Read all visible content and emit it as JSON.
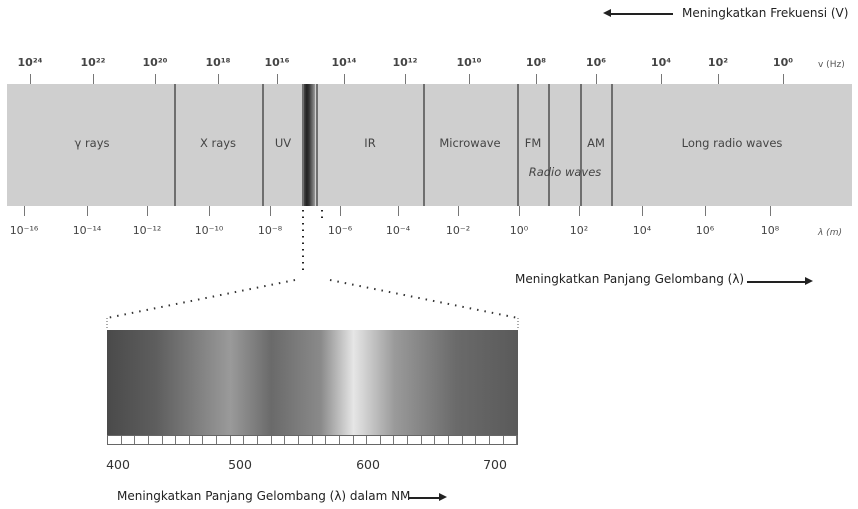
{
  "freq_caption": "Meningkatkan Frekuensi (V)",
  "freq_unit": "v (Hz)",
  "freq_ticks": [
    "10²⁴",
    "10²²",
    "10²⁰",
    "10¹⁸",
    "10¹⁶",
    "10¹⁴",
    "10¹²",
    "10¹⁰",
    "10⁸",
    "10⁶",
    "10⁴",
    "10²",
    "10⁰"
  ],
  "wl_unit": "λ (m)",
  "wl_ticks": [
    "10⁻¹⁶",
    "10⁻¹⁴",
    "10⁻¹²",
    "10⁻¹⁰",
    "10⁻⁸",
    "10⁻⁶",
    "10⁻⁴",
    "10⁻²",
    "10⁰",
    "10²",
    "10⁴",
    "10⁶",
    "10⁸"
  ],
  "regions": {
    "gamma": "γ rays",
    "xray": "X rays",
    "uv": "UV",
    "ir": "IR",
    "microwave": "Microwave",
    "fm": "FM",
    "am": "AM",
    "radio": "Radio waves",
    "long_radio": "Long radio waves"
  },
  "wl_caption": "Meningkatkan Panjang Gelombang (λ)",
  "nm_ticks": [
    "400",
    "500",
    "600",
    "700"
  ],
  "nm_caption": "Meningkatkan Panjang Gelombang (λ) dalam NM"
}
